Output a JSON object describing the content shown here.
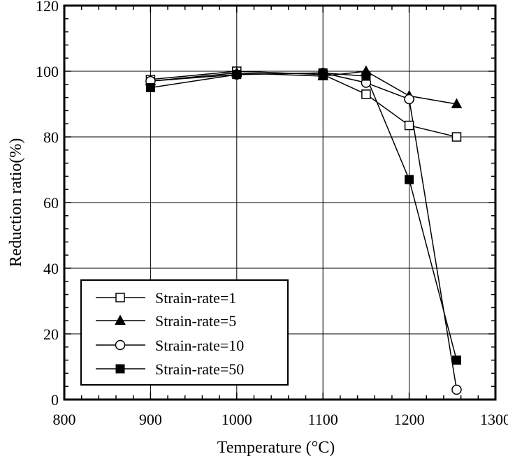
{
  "chart_data": {
    "type": "line",
    "title": "",
    "xlabel": "Temperature (°C)",
    "ylabel": "Reduction ratio(%)",
    "xlim": [
      800,
      1300
    ],
    "ylim": [
      0,
      120
    ],
    "x_ticks": [
      800,
      900,
      1000,
      1100,
      1200,
      1300
    ],
    "y_ticks": [
      0,
      20,
      40,
      60,
      80,
      100,
      120
    ],
    "grid": true,
    "legend_position": "bottom-left",
    "series": [
      {
        "name": "Strain-rate=1",
        "marker": "square-open",
        "x": [
          900,
          1000,
          1100,
          1150,
          1200,
          1255
        ],
        "y": [
          97.5,
          100,
          99,
          93,
          83.5,
          80
        ]
      },
      {
        "name": "Strain-rate=5",
        "marker": "triangle-filled",
        "x": [
          900,
          1000,
          1100,
          1150,
          1200,
          1255
        ],
        "y": [
          97,
          99.5,
          98.5,
          100,
          92.5,
          90
        ]
      },
      {
        "name": "Strain-rate=10",
        "marker": "circle-open",
        "x": [
          900,
          1000,
          1100,
          1150,
          1200,
          1255
        ],
        "y": [
          97,
          99,
          99.5,
          96.5,
          91.5,
          3
        ]
      },
      {
        "name": "Strain-rate=50",
        "marker": "square-filled",
        "x": [
          900,
          1000,
          1100,
          1150,
          1200,
          1255
        ],
        "y": [
          95,
          99,
          99.5,
          98.5,
          67,
          12
        ]
      }
    ]
  }
}
